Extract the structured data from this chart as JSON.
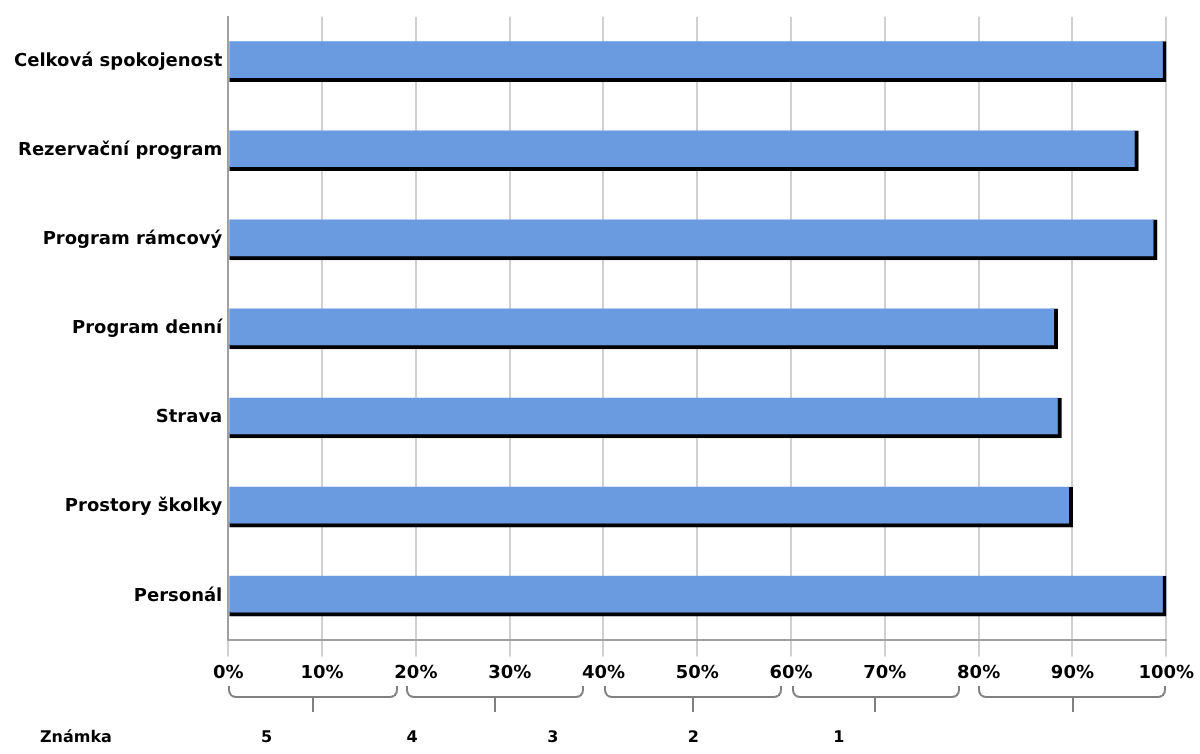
{
  "chart_data": {
    "type": "bar",
    "orientation": "horizontal",
    "categories": [
      "Celková spokojenost",
      "Rezervační program",
      "Program rámcový",
      "Program denní",
      "Strava",
      "Prostory školky",
      "Personál"
    ],
    "values": [
      100,
      97,
      99,
      88.4,
      88.8,
      90,
      100
    ],
    "color": "#6a9ae0",
    "xlim": [
      0,
      100
    ],
    "xticks": [
      {
        "value": 0,
        "label": "0%"
      },
      {
        "value": 10,
        "label": "10%"
      },
      {
        "value": 20,
        "label": "20%"
      },
      {
        "value": 30,
        "label": "30%"
      },
      {
        "value": 40,
        "label": "40%"
      },
      {
        "value": 50,
        "label": "50%"
      },
      {
        "value": 60,
        "label": "60%"
      },
      {
        "value": 70,
        "label": "70%"
      },
      {
        "value": 80,
        "label": "80%"
      },
      {
        "value": 90,
        "label": "90%"
      },
      {
        "value": 100,
        "label": "100%"
      }
    ],
    "grid": "x",
    "legend": false,
    "annotations": [
      "Známka",
      "5",
      "4",
      "3",
      "2",
      "1"
    ]
  }
}
